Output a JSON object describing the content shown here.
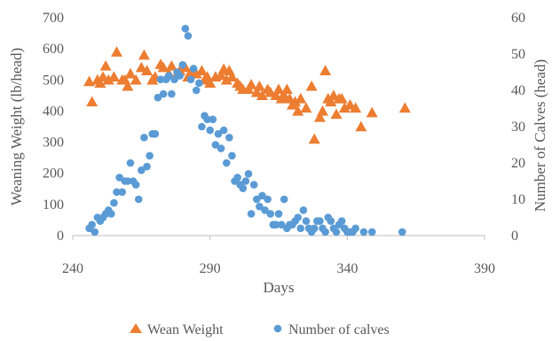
{
  "chart_data": {
    "type": "scatter",
    "title": "",
    "xlabel": "Days",
    "ylabel_left": "Weaning Weight (lb/head)",
    "ylabel_right": "Number of Calves (head)",
    "xlim": [
      240,
      390
    ],
    "ylim_left": [
      0,
      700
    ],
    "ylim_right": [
      0,
      60
    ],
    "x_ticks": [
      240,
      290,
      340,
      390
    ],
    "y_left_ticks": [
      0,
      100,
      200,
      300,
      400,
      500,
      600,
      700
    ],
    "y_right_ticks": [
      0,
      10,
      20,
      30,
      40,
      50,
      60
    ],
    "grid": false,
    "legend_position": "bottom",
    "series": [
      {
        "name": "Wean Weight",
        "axis": "left",
        "marker": "triangle",
        "color": "#ED7D31",
        "points": [
          [
            246,
            495
          ],
          [
            247,
            430
          ],
          [
            249,
            500
          ],
          [
            250,
            490
          ],
          [
            251,
            510
          ],
          [
            252,
            545
          ],
          [
            253,
            500
          ],
          [
            255,
            510
          ],
          [
            256,
            590
          ],
          [
            258,
            500
          ],
          [
            259,
            500
          ],
          [
            260,
            480
          ],
          [
            261,
            520
          ],
          [
            263,
            500
          ],
          [
            265,
            540
          ],
          [
            266,
            580
          ],
          [
            267,
            530
          ],
          [
            269,
            500
          ],
          [
            270,
            510
          ],
          [
            272,
            550
          ],
          [
            273,
            540
          ],
          [
            275,
            520
          ],
          [
            276,
            545
          ],
          [
            278,
            520
          ],
          [
            279,
            530
          ],
          [
            281,
            540
          ],
          [
            282,
            510
          ],
          [
            283,
            525
          ],
          [
            285,
            520
          ],
          [
            287,
            530
          ],
          [
            288,
            500
          ],
          [
            289,
            510
          ],
          [
            290,
            490
          ],
          [
            292,
            510
          ],
          [
            294,
            515
          ],
          [
            295,
            535
          ],
          [
            296,
            500
          ],
          [
            297,
            530
          ],
          [
            298,
            510
          ],
          [
            300,
            490
          ],
          [
            301,
            480
          ],
          [
            302,
            470
          ],
          [
            304,
            470
          ],
          [
            305,
            485
          ],
          [
            307,
            460
          ],
          [
            308,
            480
          ],
          [
            309,
            450
          ],
          [
            311,
            470
          ],
          [
            312,
            460
          ],
          [
            314,
            450
          ],
          [
            315,
            470
          ],
          [
            316,
            440
          ],
          [
            317,
            450
          ],
          [
            318,
            470
          ],
          [
            319,
            440
          ],
          [
            320,
            420
          ],
          [
            321,
            430
          ],
          [
            322,
            400
          ],
          [
            323,
            440
          ],
          [
            325,
            410
          ],
          [
            327,
            480
          ],
          [
            328,
            310
          ],
          [
            330,
            380
          ],
          [
            331,
            400
          ],
          [
            332,
            530
          ],
          [
            333,
            440
          ],
          [
            334,
            430
          ],
          [
            335,
            450
          ],
          [
            336,
            390
          ],
          [
            337,
            440
          ],
          [
            338,
            440
          ],
          [
            339,
            410
          ],
          [
            341,
            420
          ],
          [
            343,
            410
          ],
          [
            345,
            350
          ],
          [
            349,
            395
          ],
          [
            361,
            410
          ]
        ]
      },
      {
        "name": "Number of calves",
        "axis": "right",
        "marker": "circle",
        "color": "#5B9BD5",
        "points": [
          [
            246,
            2
          ],
          [
            247,
            3
          ],
          [
            248,
            1
          ],
          [
            249,
            5
          ],
          [
            250,
            4
          ],
          [
            251,
            5
          ],
          [
            252,
            6
          ],
          [
            253,
            7
          ],
          [
            254,
            6
          ],
          [
            255,
            9
          ],
          [
            256,
            12
          ],
          [
            257,
            16
          ],
          [
            258,
            12
          ],
          [
            259,
            15
          ],
          [
            260,
            15
          ],
          [
            261,
            20
          ],
          [
            262,
            15
          ],
          [
            263,
            14
          ],
          [
            264,
            10
          ],
          [
            265,
            18
          ],
          [
            266,
            27
          ],
          [
            267,
            19
          ],
          [
            268,
            22
          ],
          [
            269,
            28
          ],
          [
            270,
            28
          ],
          [
            271,
            38
          ],
          [
            272,
            43
          ],
          [
            273,
            39
          ],
          [
            274,
            43
          ],
          [
            275,
            44
          ],
          [
            276,
            39
          ],
          [
            277,
            43
          ],
          [
            278,
            45
          ],
          [
            279,
            44
          ],
          [
            280,
            47
          ],
          [
            281,
            57
          ],
          [
            282,
            55
          ],
          [
            283,
            43
          ],
          [
            284,
            46
          ],
          [
            285,
            40
          ],
          [
            286,
            42
          ],
          [
            287,
            30
          ],
          [
            288,
            33
          ],
          [
            289,
            32
          ],
          [
            290,
            29
          ],
          [
            291,
            32
          ],
          [
            292,
            25
          ],
          [
            293,
            28
          ],
          [
            294,
            24
          ],
          [
            295,
            29
          ],
          [
            296,
            20
          ],
          [
            297,
            27
          ],
          [
            298,
            22
          ],
          [
            299,
            15
          ],
          [
            300,
            16
          ],
          [
            301,
            14
          ],
          [
            302,
            13
          ],
          [
            303,
            15
          ],
          [
            304,
            17
          ],
          [
            305,
            6
          ],
          [
            306,
            14
          ],
          [
            307,
            10
          ],
          [
            308,
            8
          ],
          [
            309,
            11
          ],
          [
            310,
            7
          ],
          [
            311,
            10
          ],
          [
            312,
            6
          ],
          [
            313,
            3
          ],
          [
            314,
            3
          ],
          [
            315,
            6
          ],
          [
            316,
            3
          ],
          [
            317,
            10
          ],
          [
            318,
            2
          ],
          [
            319,
            3
          ],
          [
            320,
            3
          ],
          [
            321,
            4
          ],
          [
            322,
            5
          ],
          [
            323,
            2
          ],
          [
            324,
            7
          ],
          [
            325,
            4
          ],
          [
            326,
            2
          ],
          [
            327,
            1
          ],
          [
            328,
            2
          ],
          [
            329,
            4
          ],
          [
            330,
            4
          ],
          [
            331,
            2
          ],
          [
            332,
            1
          ],
          [
            333,
            5
          ],
          [
            334,
            4
          ],
          [
            335,
            2
          ],
          [
            336,
            1
          ],
          [
            337,
            3
          ],
          [
            338,
            4
          ],
          [
            339,
            2
          ],
          [
            340,
            1
          ],
          [
            341,
            1
          ],
          [
            342,
            1
          ],
          [
            343,
            2
          ],
          [
            346,
            1
          ],
          [
            349,
            1
          ],
          [
            360,
            1
          ]
        ]
      }
    ]
  }
}
